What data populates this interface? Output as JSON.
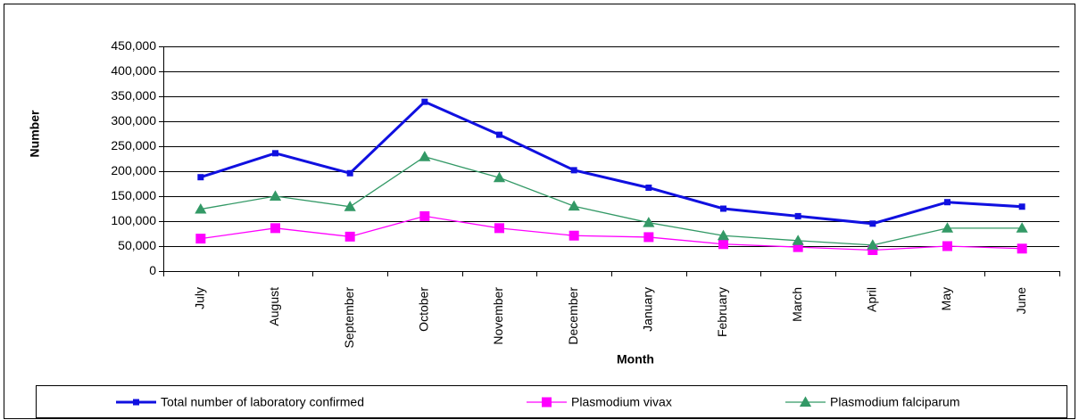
{
  "chart_data": {
    "type": "line",
    "x_label": "Month",
    "y_label": "Number",
    "categories": [
      "July",
      "August",
      "September",
      "October",
      "November",
      "December",
      "January",
      "February",
      "March",
      "April",
      "May",
      "June"
    ],
    "series": [
      {
        "name": "Total number of laboratory confirmed",
        "color": "#1010e0",
        "marker": "square",
        "values": [
          188000,
          236000,
          196000,
          339000,
          273000,
          202000,
          167000,
          125000,
          110000,
          95000,
          138000,
          129000
        ]
      },
      {
        "name": "Plasmodium vivax",
        "color": "#ff00ff",
        "marker": "square",
        "values": [
          65000,
          86000,
          69000,
          110000,
          86000,
          71000,
          68000,
          54000,
          48000,
          42000,
          50000,
          45000
        ]
      },
      {
        "name": "Plasmodium falciparum",
        "color": "#339966",
        "marker": "triangle",
        "values": [
          124000,
          150000,
          129000,
          229000,
          187000,
          130000,
          97000,
          71000,
          61000,
          52000,
          86000,
          86000
        ]
      }
    ],
    "ylim": [
      0,
      450000
    ],
    "yticks": [
      0,
      {
        "value": 50000,
        "label": "50,000"
      },
      {
        "value": 100000,
        "label": "100,000"
      },
      {
        "value": 150000,
        "label": "150,000"
      },
      {
        "value": 200000,
        "label": "200,000"
      },
      {
        "value": 250000,
        "label": "250,000"
      },
      {
        "value": 300000,
        "label": "300,000"
      },
      {
        "value": 350000,
        "label": "350,000"
      },
      {
        "value": 400000,
        "label": "400,000"
      },
      {
        "value": 450000,
        "label": "450,000"
      }
    ],
    "grid": true,
    "legend": "bottom"
  }
}
